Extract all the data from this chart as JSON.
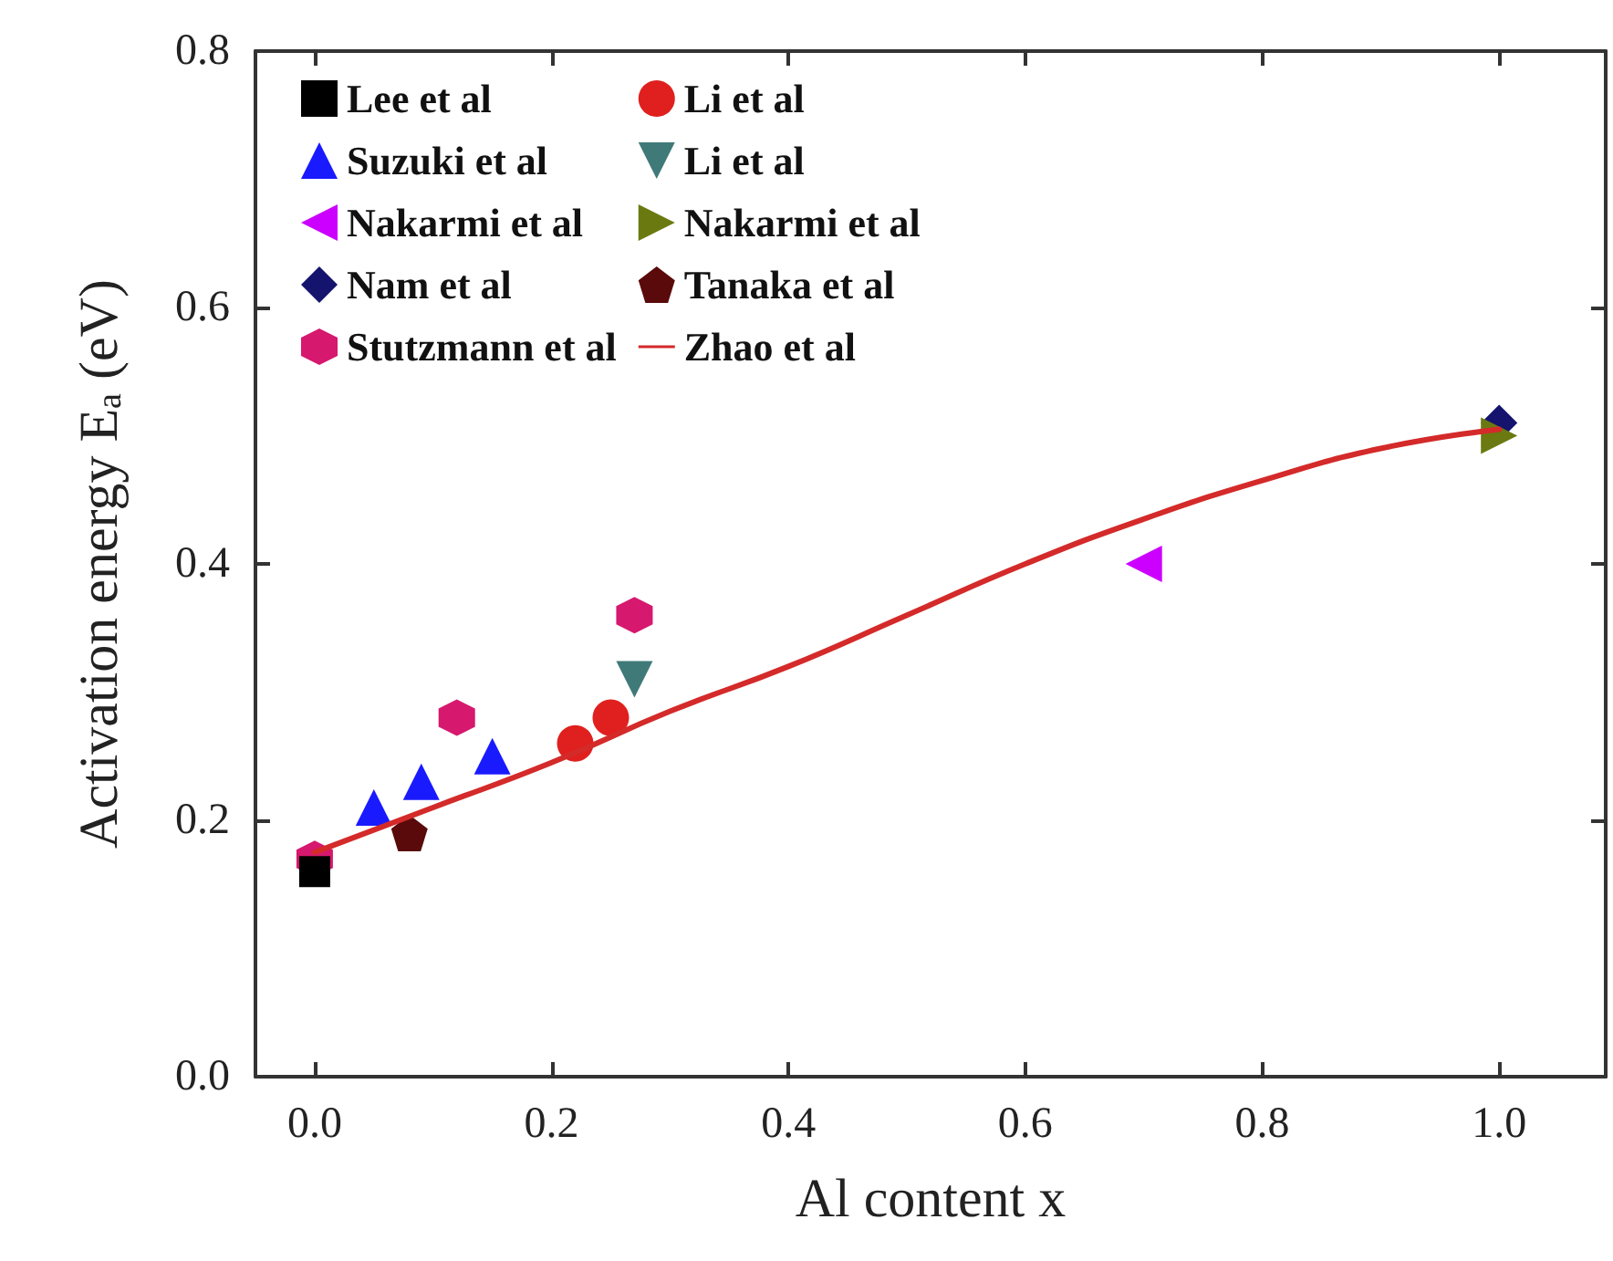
{
  "chart_data": {
    "type": "scatter",
    "xlabel": "Al content x",
    "ylabel": "Activation energy E$_{a}$ (eV)",
    "xlim": [
      -0.05,
      1.09
    ],
    "ylim": [
      0,
      0.8
    ],
    "xticks": [
      {
        "value": 0,
        "label": "0.0"
      },
      0.2,
      0.4,
      0.6,
      0.8,
      {
        "value": 1,
        "label": "1.0"
      }
    ],
    "yticks": [
      {
        "value": 0,
        "label": "0.0"
      },
      0.2,
      0.4,
      0.6,
      0.8
    ],
    "grid": false,
    "legend": "top left",
    "series": [
      {
        "name": "Lee et al",
        "color": "#000000",
        "marker": "square",
        "x": [
          0.0
        ],
        "values": [
          0.16
        ]
      },
      {
        "name": "Suzuki et al",
        "color": "#1a1aff",
        "marker": "triangle",
        "x": [
          0.05,
          0.09,
          0.15
        ],
        "values": [
          0.21,
          0.23,
          0.25
        ]
      },
      {
        "name": "Nakarmi et al",
        "color": "#cc00ff",
        "marker": "triangle-left",
        "x": [
          0.7
        ],
        "values": [
          0.4
        ]
      },
      {
        "name": "Nam et al",
        "color": "#14146e",
        "marker": "diamond",
        "x": [
          1.0
        ],
        "values": [
          0.51
        ]
      },
      {
        "name": "Stutzmann et al",
        "color": "#d6186e",
        "x": [
          0.0,
          0.12,
          0.27
        ],
        "values": [
          0.17,
          0.28,
          0.36
        ]
      },
      {
        "name": "Li et al",
        "color": "#e0201e",
        "marker": "circle",
        "x": [
          0.22,
          0.25
        ],
        "values": [
          0.26,
          0.28
        ]
      },
      {
        "name": "Li et al",
        "color": "#3f7a78",
        "marker": "triangle-down",
        "x": [
          0.27
        ],
        "values": [
          0.31
        ]
      },
      {
        "name": "Nakarmi et al",
        "color": "#6b7a10",
        "marker": "triangle-right",
        "x": [
          1.0
        ],
        "values": [
          0.5
        ]
      },
      {
        "name": "Tanaka et al",
        "color": "#5a0a0a",
        "x": [
          0.08
        ],
        "values": [
          0.19
        ]
      },
      {
        "name": "Zhao et al",
        "color": "#d42a2a",
        "type": "line",
        "marker": "none",
        "line_style": "solid",
        "x": [
          0.0,
          0.1,
          0.2,
          0.3,
          0.4,
          0.5,
          0.6,
          0.7,
          0.8,
          0.9,
          1.0
        ],
        "values": [
          0.175,
          0.21,
          0.245,
          0.285,
          0.32,
          0.36,
          0.4,
          0.435,
          0.465,
          0.49,
          0.505
        ]
      }
    ]
  }
}
